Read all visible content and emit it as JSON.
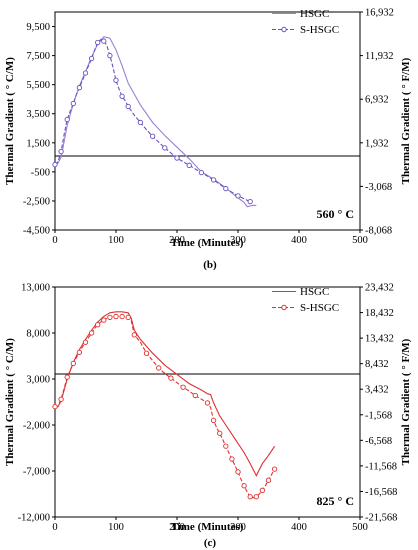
{
  "chart_data": [
    {
      "type": "line",
      "panel_label": "(b)",
      "annotation": "560 ° C",
      "xlabel": "Time (Minutes)",
      "ylabel": "Thermal Gradient ( ° C/M)",
      "y2label": "Thermal Gradient ( ° F/M)",
      "xlim": [
        0,
        500
      ],
      "ylim": [
        -4500,
        10500
      ],
      "x_ticks": [
        "0",
        "100",
        "200",
        "300",
        "400",
        "500"
      ],
      "y_ticks": [
        "9,500",
        "7,500",
        "5,500",
        "3,500",
        "1,500",
        "-500",
        "-2,500",
        "-4,500"
      ],
      "y_tick_values": [
        9500,
        7500,
        5500,
        3500,
        1500,
        -500,
        -2500,
        -4500
      ],
      "y2_ticks": [
        "16,932",
        "11,932",
        "6,932",
        "1,932",
        "-3,068",
        "-8,068"
      ],
      "y2_tick_values": [
        16932,
        11932,
        6932,
        1932,
        -3068,
        -8068
      ],
      "legend_position": "top-right",
      "series": [
        {
          "name": "HSGC",
          "color": "#9b7fd4",
          "style": "solid",
          "x": [
            0,
            5,
            10,
            15,
            20,
            30,
            40,
            50,
            60,
            70,
            80,
            90,
            100,
            110,
            120,
            140,
            160,
            180,
            200,
            220,
            240,
            260,
            280,
            300,
            310,
            315,
            320,
            325,
            330
          ],
          "y": [
            0,
            100,
            500,
            1600,
            2700,
            4200,
            5400,
            6400,
            7400,
            8300,
            8800,
            8700,
            7900,
            6800,
            5600,
            4100,
            2900,
            2000,
            1200,
            400,
            -500,
            -1000,
            -1600,
            -2300,
            -2600,
            -2900,
            -2850,
            -2800,
            -2800
          ]
        },
        {
          "name": "S-HSGC",
          "color": "#6a4fc0",
          "style": "dashed",
          "marker": "circle",
          "x": [
            0,
            5,
            10,
            15,
            20,
            25,
            30,
            35,
            40,
            45,
            50,
            55,
            60,
            65,
            70,
            75,
            80,
            85,
            90,
            95,
            100,
            105,
            110,
            115,
            120,
            130,
            140,
            150,
            160,
            170,
            180,
            190,
            200,
            210,
            220,
            230,
            240,
            250,
            260,
            270,
            280,
            290,
            300,
            310,
            320
          ],
          "y": [
            0,
            200,
            900,
            2100,
            3100,
            3700,
            4200,
            4800,
            5300,
            5800,
            6300,
            6800,
            7300,
            7900,
            8400,
            8600,
            8500,
            8200,
            7500,
            6700,
            5800,
            5200,
            4700,
            4400,
            4000,
            3400,
            2900,
            2400,
            1950,
            1550,
            1150,
            800,
            450,
            200,
            -50,
            -300,
            -550,
            -800,
            -1050,
            -1350,
            -1650,
            -1900,
            -2150,
            -2350,
            -2550
          ]
        }
      ]
    },
    {
      "type": "line",
      "panel_label": "(c)",
      "annotation": "825 ° C",
      "xlabel": "Time (Minutes)",
      "ylabel": "Thermal Gradient ( ° C/M)",
      "y2label": "Thermal Gradient ( ° F/M)",
      "xlim": [
        0,
        500
      ],
      "ylim": [
        -12000,
        13000
      ],
      "x_ticks": [
        "0",
        "100",
        "200",
        "300",
        "400",
        "500"
      ],
      "y_ticks": [
        "13,000",
        "8,000",
        "3,000",
        "-2,000",
        "-7,000",
        "-12,000"
      ],
      "y_tick_values": [
        13000,
        8000,
        3000,
        -2000,
        -7000,
        -12000
      ],
      "y2_ticks": [
        "23,432",
        "18,432",
        "13,432",
        "8,432",
        "3,432",
        "-1,568",
        "-6,568",
        "-11,568",
        "-16,568",
        "-21,568"
      ],
      "y2_tick_values": [
        23432,
        18432,
        13432,
        8432,
        3432,
        -1568,
        -6568,
        -11568,
        -16568,
        -21568
      ],
      "legend_position": "top-right",
      "series": [
        {
          "name": "HSGC",
          "color": "#e03030",
          "style": "solid",
          "x": [
            0,
            5,
            10,
            15,
            20,
            30,
            40,
            50,
            60,
            70,
            80,
            90,
            100,
            110,
            120,
            125,
            130,
            140,
            160,
            180,
            200,
            220,
            240,
            250,
            255,
            260,
            270,
            280,
            290,
            300,
            310,
            320,
            330,
            340,
            350,
            360
          ],
          "y": [
            0,
            0,
            600,
            1800,
            3000,
            4800,
            6200,
            7300,
            8300,
            9200,
            9800,
            10200,
            10300,
            10300,
            10200,
            9600,
            8300,
            7300,
            5800,
            4500,
            3500,
            2500,
            1800,
            1400,
            1300,
            400,
            -1000,
            -2000,
            -3000,
            -4000,
            -5000,
            -6200,
            -7500,
            -6200,
            -5300,
            -4300
          ]
        },
        {
          "name": "S-HSGC",
          "color": "#e03030",
          "style": "dashed",
          "marker": "circle",
          "x": [
            0,
            5,
            10,
            15,
            20,
            25,
            30,
            35,
            40,
            45,
            50,
            55,
            60,
            65,
            70,
            75,
            80,
            85,
            90,
            95,
            100,
            105,
            110,
            115,
            120,
            125,
            130,
            140,
            150,
            160,
            170,
            180,
            190,
            200,
            210,
            220,
            230,
            240,
            250,
            255,
            260,
            265,
            270,
            275,
            280,
            285,
            290,
            295,
            300,
            305,
            310,
            315,
            320,
            325,
            330,
            335,
            340,
            345,
            350,
            355,
            360
          ],
          "y": [
            0,
            0,
            800,
            2000,
            3200,
            4000,
            4700,
            5300,
            5900,
            6500,
            7000,
            7500,
            8000,
            8500,
            8900,
            9200,
            9400,
            9600,
            9700,
            9800,
            9800,
            9800,
            9800,
            9800,
            9700,
            9300,
            7800,
            7000,
            5800,
            5000,
            4200,
            3600,
            3100,
            2600,
            2100,
            1700,
            1200,
            800,
            400,
            -100,
            -1500,
            -2300,
            -2900,
            -3600,
            -4300,
            -5000,
            -5700,
            -6400,
            -7100,
            -7900,
            -8600,
            -9300,
            -9800,
            -9900,
            -9800,
            -9500,
            -9100,
            -8600,
            -8000,
            -7400,
            -6800
          ]
        }
      ]
    }
  ]
}
